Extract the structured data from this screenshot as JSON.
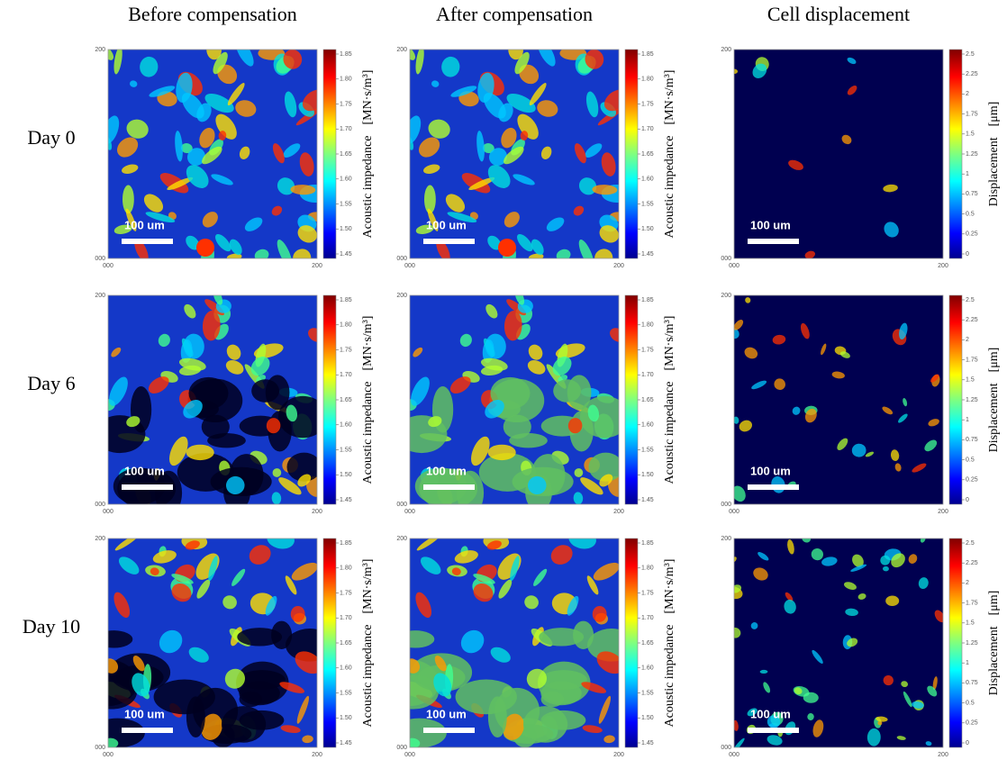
{
  "columns": [
    "Before compensation",
    "After compensation",
    "Cell displacement"
  ],
  "rows": [
    "Day 0",
    "Day 6",
    "Day 10"
  ],
  "axis_ticks": {
    "top": "200",
    "bottom": "000"
  },
  "scale_bar": "100 um",
  "colorbars": {
    "impedance": {
      "label": "Acoustic impedance",
      "unit": "[MN·s/m³]",
      "ticks": [
        "1.85",
        "1.80",
        "1.75",
        "1.70",
        "1.65",
        "1.60",
        "1.55",
        "1.50",
        "1.45"
      ]
    },
    "displacement": {
      "label": "Displacement",
      "unit": "[μm]",
      "ticks": [
        "2.5",
        "2.25",
        "2",
        "1.75",
        "1.5",
        "1.25",
        "1",
        "0.75",
        "0.5",
        "0.25",
        "0"
      ]
    }
  }
}
